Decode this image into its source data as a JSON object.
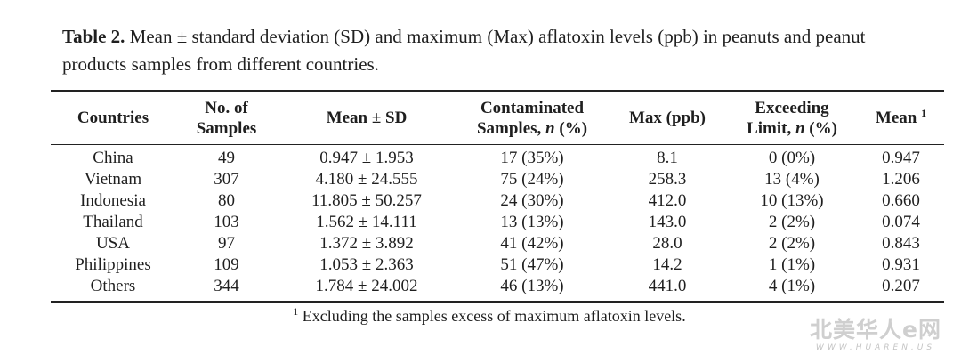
{
  "caption": {
    "label": "Table 2.",
    "text": " Mean ± standard deviation (SD) and maximum (Max) aflatoxin levels (ppb) in peanuts and peanut products samples from different countries."
  },
  "headers": {
    "countries": "Countries",
    "samples_1": "No. of",
    "samples_2": "Samples",
    "mean_sd": "Mean ± SD",
    "contam_1": "Contaminated",
    "contam_2": "Samples, ",
    "contam_n": "n",
    "contam_pct": " (%)",
    "max": "Max (ppb)",
    "exceed_1": "Exceeding",
    "exceed_2": "Limit, ",
    "exceed_n": "n",
    "exceed_pct": " (%)",
    "mean1": "Mean ",
    "mean1_sup": "1"
  },
  "rows": [
    {
      "country": "China",
      "samples": "49",
      "mean_sd": "0.947 ± 1.953",
      "contaminated": "17 (35%)",
      "max": "8.1",
      "exceeding": "0 (0%)",
      "mean1": "0.947"
    },
    {
      "country": "Vietnam",
      "samples": "307",
      "mean_sd": "4.180 ± 24.555",
      "contaminated": "75 (24%)",
      "max": "258.3",
      "exceeding": "13 (4%)",
      "mean1": "1.206"
    },
    {
      "country": "Indonesia",
      "samples": "80",
      "mean_sd": "11.805 ± 50.257",
      "contaminated": "24 (30%)",
      "max": "412.0",
      "exceeding": "10 (13%)",
      "mean1": "0.660"
    },
    {
      "country": "Thailand",
      "samples": "103",
      "mean_sd": "1.562 ± 14.111",
      "contaminated": "13 (13%)",
      "max": "143.0",
      "exceeding": "2 (2%)",
      "mean1": "0.074"
    },
    {
      "country": "USA",
      "samples": "97",
      "mean_sd": "1.372 ± 3.892",
      "contaminated": "41 (42%)",
      "max": "28.0",
      "exceeding": "2 (2%)",
      "mean1": "0.843"
    },
    {
      "country": "Philippines",
      "samples": "109",
      "mean_sd": "1.053 ± 2.363",
      "contaminated": "51 (47%)",
      "max": "14.2",
      "exceeding": "1 (1%)",
      "mean1": "0.931"
    },
    {
      "country": "Others",
      "samples": "344",
      "mean_sd": "1.784 ± 24.002",
      "contaminated": "46 (13%)",
      "max": "441.0",
      "exceeding": "4 (1%)",
      "mean1": "0.207"
    }
  ],
  "footnote": {
    "sup": "1",
    "text": " Excluding the samples excess of maximum aflatoxin levels."
  },
  "watermark": {
    "main": "北美华人e网",
    "sub": "WWW.HUAREN.US"
  }
}
